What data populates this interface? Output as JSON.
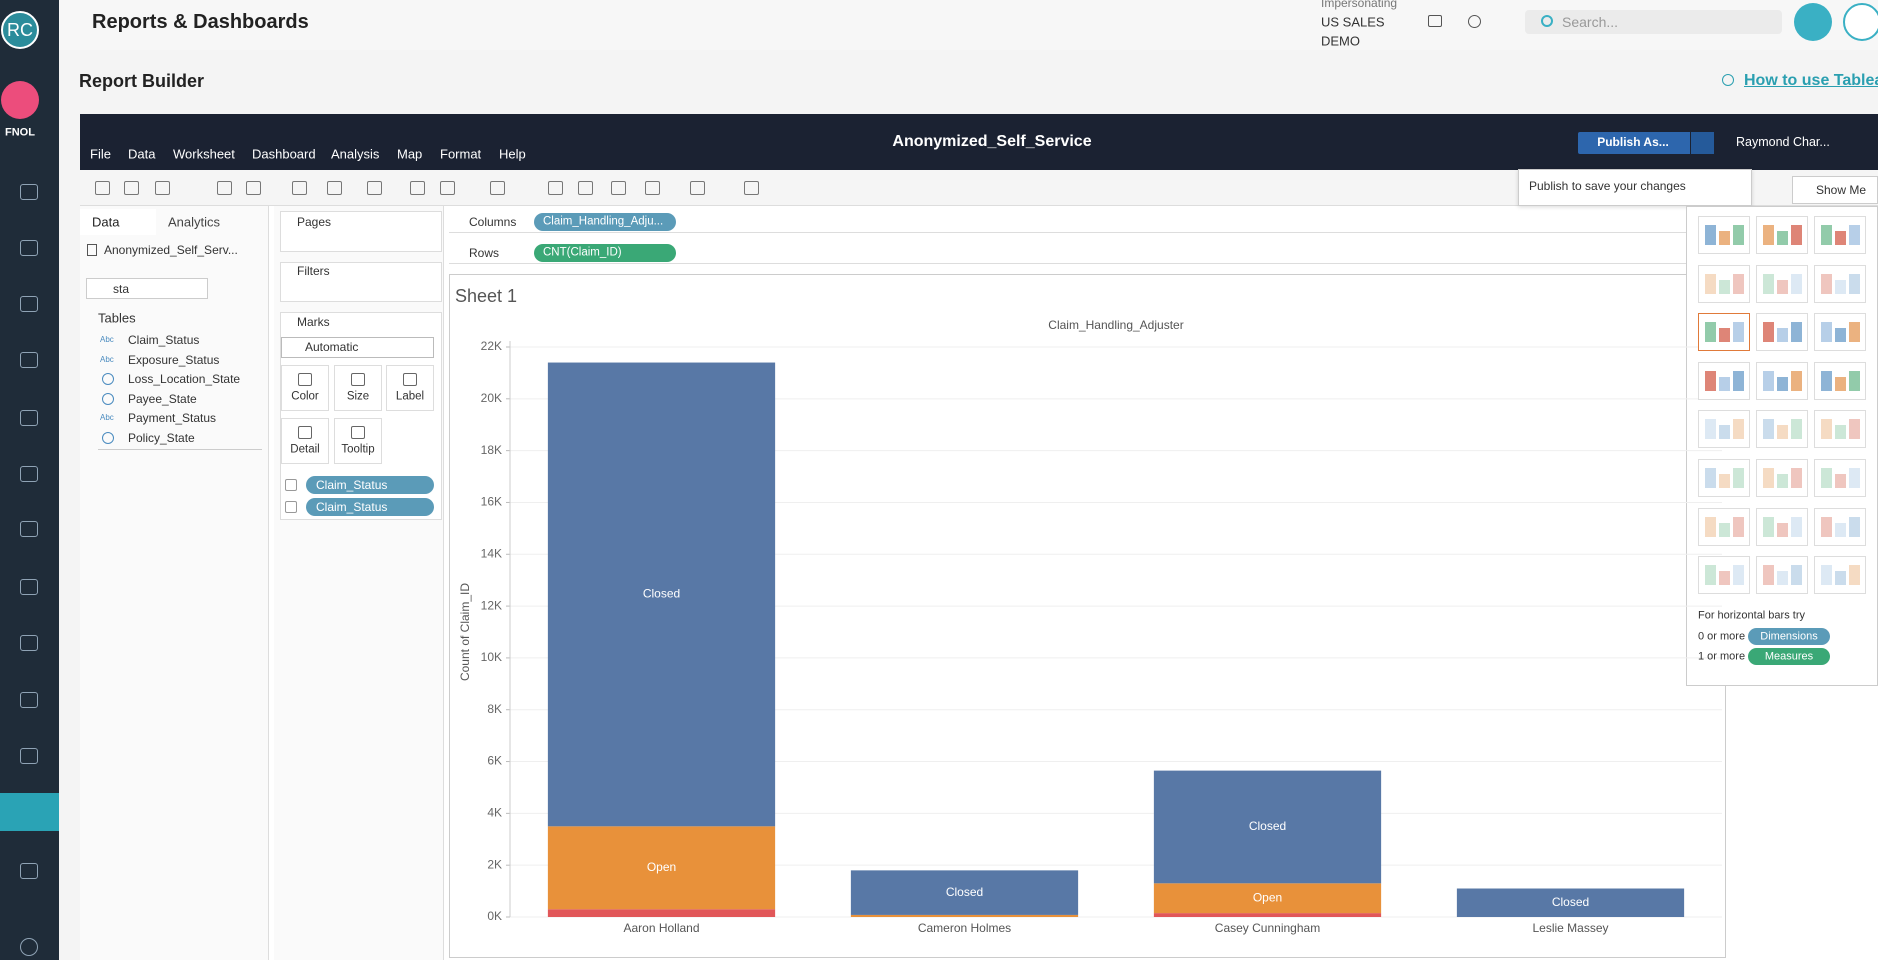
{
  "header": {
    "title": "Reports & Dashboards",
    "impersonating": "Impersonating",
    "user_lines": [
      "US SALES",
      "DEMO"
    ],
    "search_placeholder": "Search..."
  },
  "sidebar": {
    "avatar": "RC",
    "fnol": "FNOL"
  },
  "page": {
    "title": "Report Builder",
    "help_link": "How to use Tablea"
  },
  "tableau": {
    "workbook": "Anonymized_Self_Service",
    "menu": [
      "File",
      "Data",
      "Worksheet",
      "Dashboard",
      "Analysis",
      "Map",
      "Format",
      "Help"
    ],
    "publish": "Publish As...",
    "user": "Raymond Char...",
    "publish_tip": "Publish to save your changes",
    "show_me": "Show Me"
  },
  "data_pane": {
    "tabs": [
      "Data",
      "Analytics"
    ],
    "source": "Anonymized_Self_Serv...",
    "search": "sta",
    "tables_heading": "Tables",
    "fields": [
      {
        "type": "Abc",
        "name": "Claim_Status"
      },
      {
        "type": "Abc",
        "name": "Exposure_Status"
      },
      {
        "name": "Loss_Location_State"
      },
      {
        "name": "Payee_State"
      },
      {
        "type": "Abc",
        "name": "Payment_Status"
      },
      {
        "name": "Policy_State"
      }
    ]
  },
  "shelves": {
    "pages": "Pages",
    "filters": "Filters",
    "marks": "Marks",
    "mark_type": "Automatic",
    "mark_buttons": [
      "Color",
      "Size",
      "Label",
      "Detail",
      "Tooltip"
    ],
    "mark_pills": [
      "Claim_Status",
      "Claim_Status"
    ],
    "columns": "Columns",
    "columns_pill": "Claim_Handling_Adju...",
    "rows": "Rows",
    "rows_pill": "CNT(Claim_ID)"
  },
  "sheet": {
    "title": "Sheet 1"
  },
  "show_me": {
    "hint": "For horizontal bars try",
    "requirements": [
      {
        "count": "0 or more",
        "kind": "Dimensions"
      },
      {
        "count": "1 or more",
        "kind": "Measures"
      }
    ]
  },
  "chart_data": {
    "type": "bar",
    "stacked": true,
    "title": "Claim_Handling_Adjuster",
    "y_label": "Count of Claim_ID",
    "categories": [
      "Aaron Holland",
      "Cameron Holmes",
      "Casey Cunningham",
      "Leslie Massey"
    ],
    "series": [
      {
        "color": "#e15759",
        "values": [
          300,
          0,
          150,
          0
        ]
      },
      {
        "name": "Open",
        "color": "#e8913a",
        "values": [
          3200,
          80,
          1150,
          0
        ]
      },
      {
        "name": "Closed",
        "color": "#5878a6",
        "values": [
          17900,
          1720,
          4350,
          1100
        ]
      }
    ],
    "ylim": [
      0,
      22000
    ],
    "yticks": [
      {
        "value": 0,
        "label": "0K"
      },
      {
        "value": 2000,
        "label": "2K"
      },
      {
        "value": 4000,
        "label": "4K"
      },
      {
        "value": 6000,
        "label": "6K"
      },
      {
        "value": 8000,
        "label": "8K"
      },
      {
        "value": 10000,
        "label": "10K"
      },
      {
        "value": 12000,
        "label": "12K"
      },
      {
        "value": 14000,
        "label": "14K"
      },
      {
        "value": 16000,
        "label": "16K"
      },
      {
        "value": 18000,
        "label": "18K"
      },
      {
        "value": 20000,
        "label": "20K"
      },
      {
        "value": 22000,
        "label": "22K"
      }
    ],
    "grid": true
  }
}
